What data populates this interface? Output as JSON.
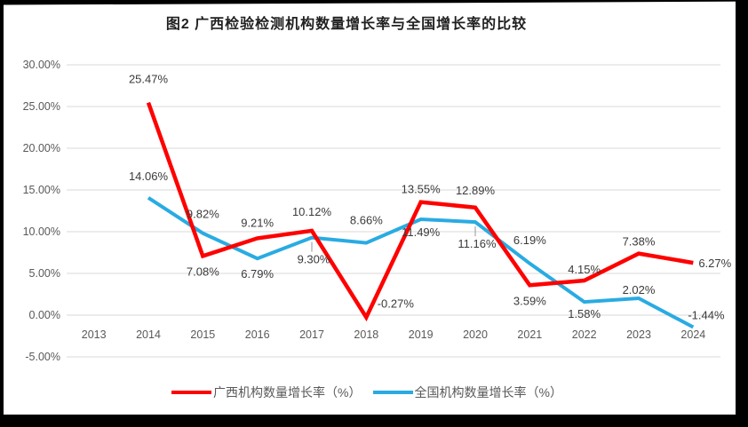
{
  "chart_data": {
    "type": "line",
    "title": "图2 广西检验检测机构数量增长率与全国增长率的比较",
    "categories": [
      "2013",
      "2014",
      "2015",
      "2016",
      "2017",
      "2018",
      "2019",
      "2020",
      "2021",
      "2022",
      "2023",
      "2024"
    ],
    "y_ticks": [
      "30.00%",
      "25.00%",
      "20.00%",
      "15.00%",
      "10.00%",
      "5.00%",
      "0.00%",
      "-5.00%"
    ],
    "ylim": [
      -5,
      30
    ],
    "grid": true,
    "legend_position": "bottom",
    "colors": {
      "guangxi": "#FF0000",
      "national": "#29ABE2",
      "gridline": "#D9D9D9",
      "axis_text": "#595959",
      "data_label_text": "#3a3a3a",
      "leader": "#A6A6A6",
      "frame": "#000000"
    },
    "series": [
      {
        "name": "广西机构数量增长率（%）",
        "color_key": "guangxi",
        "points": [
          {
            "category": "2014",
            "value": 25.47,
            "label": "25.47%",
            "label_pos": "above",
            "label_dy": -9
          },
          {
            "category": "2015",
            "value": 7.08,
            "label": "7.08%",
            "label_pos": "below"
          },
          {
            "category": "2016",
            "value": 9.21,
            "label": "9.21%",
            "label_pos": "above"
          },
          {
            "category": "2017",
            "value": 10.12,
            "label": "10.12%",
            "label_pos": "above",
            "label_dy": -4
          },
          {
            "category": "2018",
            "value": -0.27,
            "label": "-0.27%",
            "label_pos": "above-right"
          },
          {
            "category": "2019",
            "value": 13.55,
            "label": "13.55%",
            "label_pos": "above",
            "label_dy": 3
          },
          {
            "category": "2020",
            "value": 12.89,
            "label": "12.89%",
            "label_pos": "above",
            "label_dy": -2
          },
          {
            "category": "2021",
            "value": 3.59,
            "label": "3.59%",
            "label_pos": "below"
          },
          {
            "category": "2022",
            "value": 4.15,
            "label": "4.15%",
            "label_pos": "above",
            "label_dy": 5
          },
          {
            "category": "2023",
            "value": 7.38,
            "label": "7.38%",
            "label_pos": "above",
            "label_dy": 4
          },
          {
            "category": "2024",
            "value": 6.27,
            "label": "6.27%",
            "label_pos": "right"
          }
        ]
      },
      {
        "name": "全国机构数量增长率（%）",
        "color_key": "national",
        "points": [
          {
            "category": "2014",
            "value": 14.06,
            "label": "14.06%",
            "label_pos": "above",
            "label_dy": -7
          },
          {
            "category": "2015",
            "value": 9.82,
            "label": "9.82%",
            "label_pos": "above",
            "label_dy": -4
          },
          {
            "category": "2016",
            "value": 6.79,
            "label": "6.79%",
            "label_pos": "below"
          },
          {
            "category": "2017",
            "value": 9.3,
            "label": "9.30%",
            "label_pos": "below-leader"
          },
          {
            "category": "2018",
            "value": 8.66,
            "label": "8.66%",
            "label_pos": "above",
            "label_dy": -8
          },
          {
            "category": "2019",
            "value": 11.49,
            "label": "11.49%",
            "label_pos": "below",
            "label_dy": -3
          },
          {
            "category": "2020",
            "value": 11.16,
            "label": "11.16%",
            "label_pos": "below-leader"
          },
          {
            "category": "2021",
            "value": 6.19,
            "label": "6.19%",
            "label_pos": "above",
            "label_dy": -9
          },
          {
            "category": "2022",
            "value": 1.58,
            "label": "1.58%",
            "label_pos": "below",
            "label_dy": -4
          },
          {
            "category": "2023",
            "value": 2.02,
            "label": "2.02%",
            "label_pos": "above",
            "label_dy": 8
          },
          {
            "category": "2024",
            "value": -1.44,
            "label": "-1.44%",
            "label_pos": "right-above"
          }
        ]
      }
    ]
  },
  "legend": {
    "items": [
      {
        "label": "广西机构数量增长率（%）",
        "color_key": "guangxi"
      },
      {
        "label": "全国机构数量增长率（%）",
        "color_key": "national"
      }
    ]
  }
}
